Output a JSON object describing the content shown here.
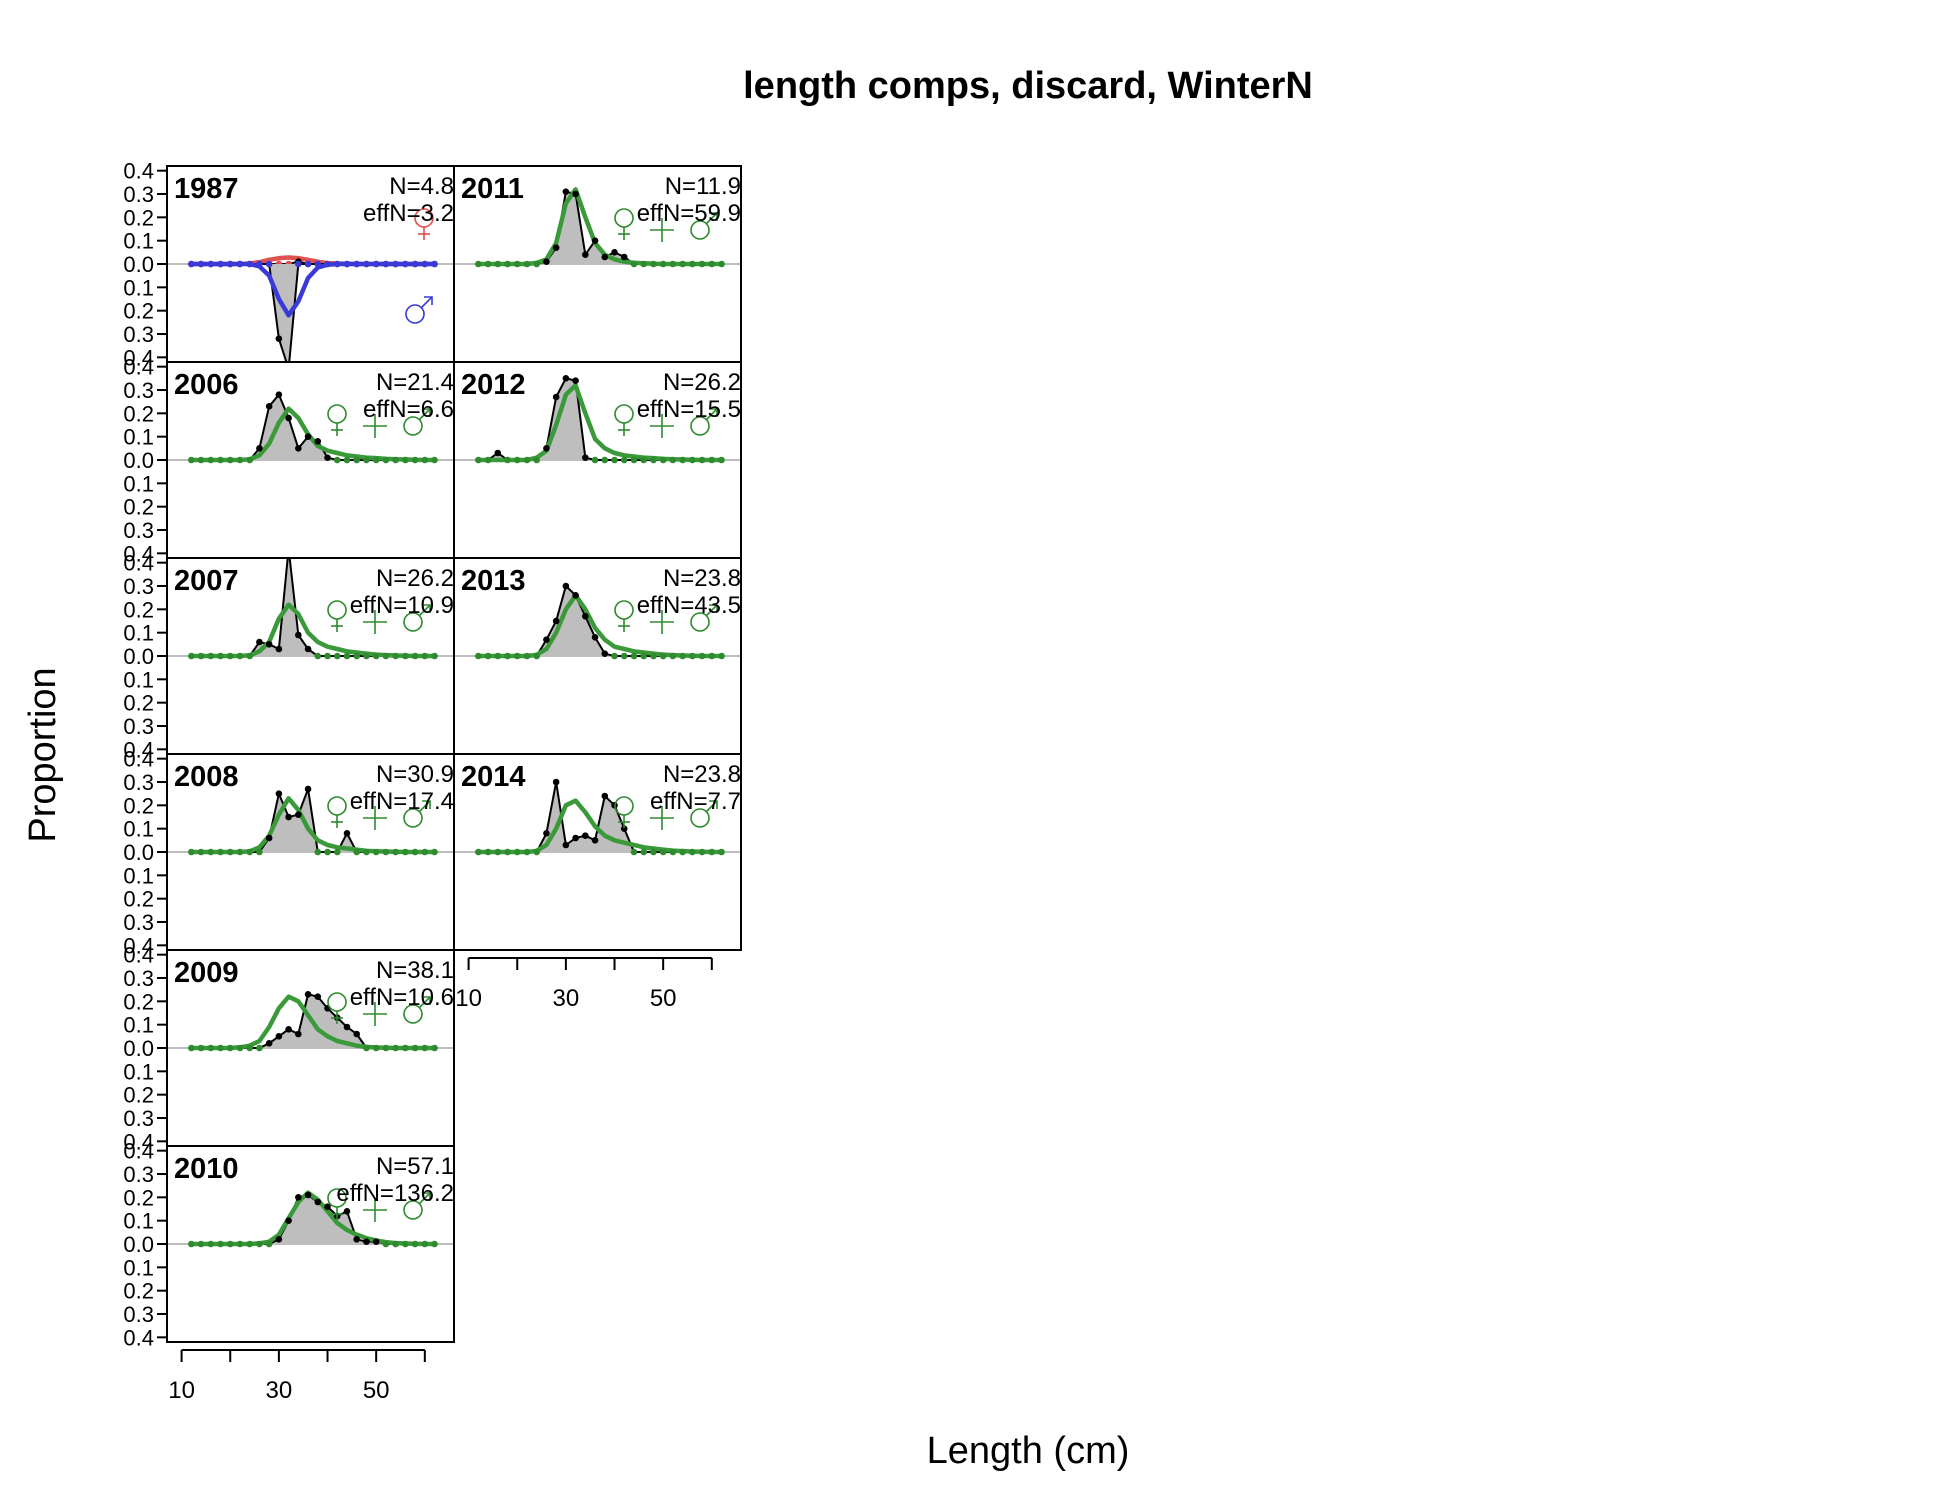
{
  "chart_data": {
    "type": "area",
    "title": "length comps, discard, WinterN",
    "xlabel": "Length (cm)",
    "ylabel": "Proportion",
    "x_ticks": [
      10,
      30,
      50
    ],
    "x_tick_marks": [
      10,
      20,
      30,
      40,
      50,
      60
    ],
    "xlim": [
      7,
      66
    ],
    "y_tick_labels": [
      "0.4",
      "0.3",
      "0.2",
      "0.1",
      "0.0",
      "0.1",
      "0.2",
      "0.3",
      "0.4"
    ],
    "ylim": [
      -0.42,
      0.42
    ],
    "bins": [
      12,
      14,
      16,
      18,
      20,
      22,
      24,
      26,
      28,
      30,
      32,
      34,
      36,
      38,
      40,
      42,
      44,
      46,
      48,
      50,
      52,
      54,
      56,
      58,
      60,
      62
    ],
    "colors": {
      "observed_fill": "#bebebe",
      "observed_line": "#000000",
      "expected_combined": "#3a9a3a",
      "marker_combined": "#2e8b2e",
      "expected_female": "#e05050",
      "expected_male": "#3a3ad8",
      "zero_line": "#bdbdbd"
    },
    "panels": [
      {
        "year": "1987",
        "N_label": "N=4.8",
        "effN_label": "effN=3.2",
        "sex_split": true,
        "female_obs": [
          0,
          0,
          0,
          0,
          0,
          0,
          0,
          0,
          0,
          0,
          0,
          0.01,
          0,
          0,
          0,
          0,
          0,
          0,
          0,
          0,
          0,
          0,
          0,
          0,
          0,
          0
        ],
        "female_exp": [
          0,
          0,
          0,
          0,
          0,
          0,
          0.002,
          0.008,
          0.018,
          0.025,
          0.028,
          0.025,
          0.018,
          0.01,
          0.004,
          0.002,
          0.001,
          0,
          0,
          0,
          0,
          0,
          0,
          0,
          0,
          0
        ],
        "male_obs": [
          0,
          0,
          0,
          0,
          0,
          0,
          0,
          0,
          0,
          -0.32,
          -0.45,
          0,
          0,
          0,
          0,
          0,
          0,
          0,
          0,
          0,
          0,
          0,
          0,
          0,
          0,
          0
        ],
        "male_exp": [
          0,
          0,
          0,
          0,
          0,
          0,
          0,
          -0.01,
          -0.05,
          -0.15,
          -0.22,
          -0.16,
          -0.06,
          -0.015,
          -0.003,
          0,
          0,
          0,
          0,
          0,
          0,
          0,
          0,
          0,
          0,
          0
        ]
      },
      {
        "year": "2006",
        "N_label": "N=21.4",
        "effN_label": "effN=6.6",
        "sex_split": false,
        "obs": [
          0,
          0,
          0,
          0,
          0,
          0,
          0,
          0.05,
          0.23,
          0.28,
          0.18,
          0.05,
          0.1,
          0.08,
          0.01,
          0,
          0,
          0,
          0,
          0,
          0,
          0,
          0,
          0,
          0,
          0
        ],
        "exp": [
          0,
          0,
          0,
          0,
          0,
          0,
          0.003,
          0.02,
          0.07,
          0.16,
          0.22,
          0.18,
          0.11,
          0.06,
          0.04,
          0.03,
          0.02,
          0.015,
          0.01,
          0.008,
          0.005,
          0.003,
          0.002,
          0.001,
          0,
          0
        ]
      },
      {
        "year": "2007",
        "N_label": "N=26.2",
        "effN_label": "effN=10.9",
        "sex_split": false,
        "obs": [
          0,
          0,
          0,
          0,
          0,
          0,
          0,
          0.06,
          0.05,
          0.03,
          0.46,
          0.09,
          0.03,
          0,
          0,
          0,
          0,
          0,
          0,
          0,
          0,
          0,
          0,
          0,
          0,
          0
        ],
        "exp": [
          0,
          0,
          0,
          0,
          0,
          0,
          0.003,
          0.02,
          0.06,
          0.16,
          0.22,
          0.18,
          0.1,
          0.06,
          0.04,
          0.03,
          0.02,
          0.015,
          0.01,
          0.006,
          0.004,
          0.002,
          0.001,
          0,
          0,
          0
        ]
      },
      {
        "year": "2008",
        "N_label": "N=30.9",
        "effN_label": "effN=17.4",
        "sex_split": false,
        "obs": [
          0,
          0,
          0,
          0,
          0,
          0,
          0,
          0,
          0.06,
          0.25,
          0.15,
          0.16,
          0.27,
          0,
          0,
          0,
          0.08,
          0,
          0,
          0,
          0,
          0,
          0,
          0,
          0,
          0
        ],
        "exp": [
          0,
          0,
          0,
          0,
          0,
          0,
          0.003,
          0.02,
          0.07,
          0.16,
          0.23,
          0.18,
          0.1,
          0.05,
          0.03,
          0.02,
          0.015,
          0.01,
          0.005,
          0.003,
          0.002,
          0.001,
          0,
          0,
          0,
          0
        ]
      },
      {
        "year": "2009",
        "N_label": "N=38.1",
        "effN_label": "effN=10.6",
        "sex_split": false,
        "obs": [
          0,
          0,
          0,
          0,
          0,
          0,
          0,
          0,
          0.02,
          0.05,
          0.08,
          0.06,
          0.23,
          0.22,
          0.17,
          0.13,
          0.09,
          0.06,
          0,
          0,
          0,
          0,
          0,
          0,
          0,
          0
        ],
        "exp": [
          0,
          0,
          0,
          0,
          0,
          0.003,
          0.01,
          0.03,
          0.09,
          0.17,
          0.22,
          0.2,
          0.14,
          0.08,
          0.05,
          0.03,
          0.02,
          0.01,
          0.005,
          0.002,
          0.001,
          0,
          0,
          0,
          0,
          0
        ]
      },
      {
        "year": "2010",
        "N_label": "N=57.1",
        "effN_label": "effN=136.2",
        "sex_split": false,
        "obs": [
          0,
          0,
          0,
          0,
          0,
          0,
          0,
          0,
          0,
          0.02,
          0.1,
          0.2,
          0.21,
          0.18,
          0.16,
          0.12,
          0.14,
          0.02,
          0.01,
          0.01,
          0,
          0,
          0,
          0,
          0,
          0
        ],
        "exp": [
          0,
          0,
          0,
          0,
          0,
          0,
          0,
          0.003,
          0.01,
          0.04,
          0.11,
          0.18,
          0.22,
          0.19,
          0.14,
          0.09,
          0.06,
          0.04,
          0.025,
          0.015,
          0.008,
          0.004,
          0.002,
          0.001,
          0,
          0
        ]
      },
      {
        "year": "2011",
        "N_label": "N=11.9",
        "effN_label": "effN=59.9",
        "sex_split": false,
        "obs": [
          0,
          0,
          0,
          0,
          0,
          0,
          0,
          0.01,
          0.07,
          0.31,
          0.3,
          0.04,
          0.1,
          0.03,
          0.05,
          0.03,
          0,
          0,
          0,
          0,
          0,
          0,
          0,
          0,
          0,
          0
        ],
        "exp": [
          0,
          0,
          0,
          0,
          0,
          0,
          0.005,
          0.02,
          0.09,
          0.26,
          0.32,
          0.2,
          0.09,
          0.04,
          0.02,
          0.01,
          0.005,
          0.003,
          0.001,
          0,
          0,
          0,
          0,
          0,
          0,
          0
        ]
      },
      {
        "year": "2012",
        "N_label": "N=26.2",
        "effN_label": "effN=15.5",
        "sex_split": false,
        "obs": [
          0,
          0,
          0.03,
          0,
          0,
          0,
          0,
          0.05,
          0.27,
          0.35,
          0.34,
          0.01,
          0,
          0,
          0,
          0,
          0,
          0,
          0,
          0,
          0,
          0,
          0,
          0,
          0,
          0
        ],
        "exp": [
          0,
          0,
          0,
          0,
          0,
          0,
          0.01,
          0.04,
          0.15,
          0.28,
          0.32,
          0.2,
          0.09,
          0.05,
          0.03,
          0.02,
          0.015,
          0.01,
          0.008,
          0.005,
          0.003,
          0.002,
          0.001,
          0,
          0,
          0
        ]
      },
      {
        "year": "2013",
        "N_label": "N=23.8",
        "effN_label": "effN=43.5",
        "sex_split": false,
        "obs": [
          0,
          0,
          0,
          0,
          0,
          0,
          0,
          0.07,
          0.15,
          0.3,
          0.26,
          0.17,
          0.08,
          0.01,
          0,
          0,
          0,
          0,
          0,
          0,
          0,
          0,
          0,
          0,
          0,
          0
        ],
        "exp": [
          0,
          0,
          0,
          0,
          0,
          0,
          0.005,
          0.03,
          0.1,
          0.2,
          0.26,
          0.2,
          0.12,
          0.07,
          0.04,
          0.03,
          0.02,
          0.015,
          0.01,
          0.006,
          0.004,
          0.002,
          0.001,
          0,
          0,
          0
        ]
      },
      {
        "year": "2014",
        "N_label": "N=23.8",
        "effN_label": "effN=7.7",
        "sex_split": false,
        "obs": [
          0,
          0,
          0,
          0,
          0,
          0,
          0,
          0.08,
          0.3,
          0.03,
          0.06,
          0.07,
          0.05,
          0.24,
          0.2,
          0.1,
          0,
          0,
          0,
          0,
          0,
          0,
          0,
          0,
          0,
          0
        ],
        "exp": [
          0,
          0,
          0,
          0,
          0,
          0,
          0.005,
          0.03,
          0.1,
          0.2,
          0.22,
          0.17,
          0.11,
          0.07,
          0.05,
          0.04,
          0.03,
          0.02,
          0.015,
          0.01,
          0.006,
          0.004,
          0.002,
          0.001,
          0,
          0
        ]
      }
    ]
  }
}
